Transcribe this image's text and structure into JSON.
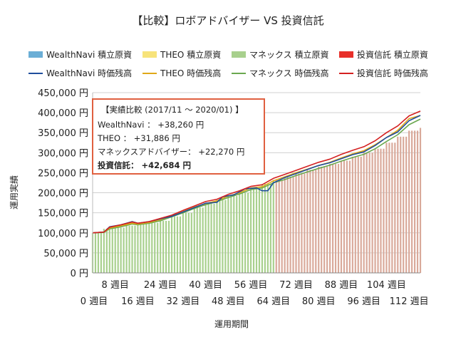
{
  "chart_data": {
    "type": "bar",
    "title": "【比較】ロボアドバイザー VS 投資信託",
    "xlabel": "運用期間",
    "ylabel": "運用実績",
    "ylim": [
      0,
      450000
    ],
    "yticks": [
      {
        "v": 0,
        "label": "0 円"
      },
      {
        "v": 50000,
        "label": "50,000 円"
      },
      {
        "v": 100000,
        "label": "100,000 円"
      },
      {
        "v": 150000,
        "label": "150,000 円"
      },
      {
        "v": 200000,
        "label": "200,000 円"
      },
      {
        "v": 250000,
        "label": "250,000 円"
      },
      {
        "v": 300000,
        "label": "300,000 円"
      },
      {
        "v": 350000,
        "label": "350,000 円"
      },
      {
        "v": 400000,
        "label": "400,000 円"
      },
      {
        "v": 450000,
        "label": "450,000 円"
      }
    ],
    "xlim": [
      0,
      116
    ],
    "xticks_top": [
      {
        "w": 8,
        "label": "8 週目"
      },
      {
        "w": 24,
        "label": "24 週目"
      },
      {
        "w": 40,
        "label": "40 週目"
      },
      {
        "w": 56,
        "label": "56 週目"
      },
      {
        "w": 72,
        "label": "72 週目"
      },
      {
        "w": 88,
        "label": "88 週目"
      },
      {
        "w": 104,
        "label": "104 週目"
      }
    ],
    "xticks_bottom": [
      {
        "w": 0,
        "label": "0 週目"
      },
      {
        "w": 16,
        "label": "16 週目"
      },
      {
        "w": 32,
        "label": "32 週目"
      },
      {
        "w": 48,
        "label": "48 週目"
      },
      {
        "w": 64,
        "label": "64 週目"
      },
      {
        "w": 80,
        "label": "80 週目"
      },
      {
        "w": 96,
        "label": "96 週目"
      },
      {
        "w": 112,
        "label": "112 週目"
      }
    ],
    "legend": {
      "position": "top",
      "row1": [
        {
          "name": "WealthNavi 積立原資",
          "color": "#6baed6",
          "kind": "box"
        },
        {
          "name": "THEO 積立原資",
          "color": "#f7e37a",
          "kind": "box"
        },
        {
          "name": "マネックス 積立原資",
          "color": "#a8d08d",
          "kind": "box"
        },
        {
          "name": "投資信託 積立原資",
          "color": "#e8302a",
          "kind": "box"
        }
      ],
      "row2": [
        {
          "name": "WealthNavi 時価残高",
          "color": "#1f4e9c",
          "kind": "line"
        },
        {
          "name": "THEO 時価残高",
          "color": "#e0a818",
          "kind": "line"
        },
        {
          "name": "マネックス 時価残高",
          "color": "#6aa84f",
          "kind": "line"
        },
        {
          "name": "投資信託 時価残高",
          "color": "#d42020",
          "kind": "line"
        }
      ]
    },
    "grid": true,
    "bar_segments": [
      {
        "from": 0,
        "to": 65,
        "color": "#a8d08d"
      },
      {
        "from": 65,
        "to": 116,
        "color": "#d9a99a"
      }
    ],
    "principal_steps": [
      [
        0,
        100000
      ],
      [
        2,
        101000
      ],
      [
        4,
        110000
      ],
      [
        8,
        113000
      ],
      [
        12,
        118000
      ],
      [
        16,
        122000
      ],
      [
        20,
        125000
      ],
      [
        24,
        130000
      ],
      [
        28,
        141000
      ],
      [
        32,
        150000
      ],
      [
        36,
        163000
      ],
      [
        40,
        173000
      ],
      [
        44,
        182000
      ],
      [
        48,
        192000
      ],
      [
        52,
        200000
      ],
      [
        56,
        212000
      ],
      [
        60,
        222000
      ],
      [
        64,
        232000
      ],
      [
        68,
        240000
      ],
      [
        72,
        248000
      ],
      [
        76,
        257000
      ],
      [
        80,
        265000
      ],
      [
        84,
        272000
      ],
      [
        88,
        280000
      ],
      [
        92,
        290000
      ],
      [
        96,
        300000
      ],
      [
        100,
        310000
      ],
      [
        104,
        325000
      ],
      [
        108,
        340000
      ],
      [
        112,
        355000
      ],
      [
        116,
        362000
      ]
    ],
    "series": [
      {
        "name": "WealthNavi 時価残高",
        "color": "#1f4e9c",
        "points": [
          [
            0,
            100000
          ],
          [
            4,
            102000
          ],
          [
            6,
            115000
          ],
          [
            10,
            120000
          ],
          [
            14,
            128000
          ],
          [
            16,
            124000
          ],
          [
            20,
            128000
          ],
          [
            24,
            135000
          ],
          [
            28,
            141000
          ],
          [
            32,
            152000
          ],
          [
            36,
            163000
          ],
          [
            40,
            174000
          ],
          [
            44,
            176000
          ],
          [
            46,
            190000
          ],
          [
            50,
            195000
          ],
          [
            54,
            210000
          ],
          [
            58,
            212000
          ],
          [
            60,
            205000
          ],
          [
            62,
            205000
          ],
          [
            64,
            225000
          ],
          [
            68,
            238000
          ],
          [
            72,
            248000
          ],
          [
            76,
            258000
          ],
          [
            80,
            268000
          ],
          [
            84,
            275000
          ],
          [
            88,
            285000
          ],
          [
            92,
            295000
          ],
          [
            96,
            302000
          ],
          [
            100,
            318000
          ],
          [
            104,
            338000
          ],
          [
            108,
            352000
          ],
          [
            112,
            380000
          ],
          [
            116,
            393000
          ]
        ]
      },
      {
        "name": "THEO 時価残高",
        "color": "#e0a818",
        "points": [
          [
            0,
            100000
          ],
          [
            4,
            102000
          ],
          [
            6,
            112000
          ],
          [
            10,
            118000
          ],
          [
            14,
            124000
          ],
          [
            16,
            122000
          ],
          [
            20,
            126000
          ],
          [
            24,
            133000
          ],
          [
            28,
            142000
          ],
          [
            32,
            153000
          ],
          [
            36,
            164000
          ],
          [
            40,
            173000
          ],
          [
            44,
            180000
          ],
          [
            48,
            192000
          ],
          [
            52,
            200000
          ],
          [
            56,
            212000
          ],
          [
            60,
            215000
          ],
          [
            64,
            230000
          ],
          [
            68,
            240000
          ],
          [
            72,
            250000
          ],
          [
            76,
            259000
          ],
          [
            80,
            268000
          ],
          [
            84,
            276000
          ],
          [
            88,
            287000
          ],
          [
            92,
            297000
          ],
          [
            96,
            305000
          ],
          [
            100,
            320000
          ],
          [
            104,
            338000
          ],
          [
            108,
            356000
          ],
          [
            112,
            385000
          ],
          [
            116,
            393000
          ]
        ]
      },
      {
        "name": "マネックス 時価残高",
        "color": "#6aa84f",
        "points": [
          [
            0,
            100000
          ],
          [
            4,
            101000
          ],
          [
            6,
            110000
          ],
          [
            10,
            115000
          ],
          [
            14,
            122000
          ],
          [
            16,
            120000
          ],
          [
            20,
            124000
          ],
          [
            24,
            130000
          ],
          [
            28,
            140000
          ],
          [
            32,
            150000
          ],
          [
            36,
            161000
          ],
          [
            40,
            170000
          ],
          [
            44,
            178000
          ],
          [
            48,
            188000
          ],
          [
            52,
            197000
          ],
          [
            56,
            208000
          ],
          [
            60,
            212000
          ],
          [
            64,
            225000
          ],
          [
            68,
            233000
          ],
          [
            72,
            243000
          ],
          [
            76,
            252000
          ],
          [
            80,
            261000
          ],
          [
            84,
            269000
          ],
          [
            88,
            279000
          ],
          [
            92,
            288000
          ],
          [
            96,
            296000
          ],
          [
            100,
            310000
          ],
          [
            104,
            328000
          ],
          [
            108,
            345000
          ],
          [
            112,
            370000
          ],
          [
            116,
            384000
          ]
        ]
      },
      {
        "name": "投資信託 時価残高",
        "color": "#d42020",
        "points": [
          [
            0,
            100000
          ],
          [
            4,
            102000
          ],
          [
            6,
            114000
          ],
          [
            10,
            120000
          ],
          [
            14,
            127000
          ],
          [
            16,
            124000
          ],
          [
            20,
            128000
          ],
          [
            24,
            136000
          ],
          [
            28,
            144000
          ],
          [
            32,
            156000
          ],
          [
            36,
            167000
          ],
          [
            40,
            178000
          ],
          [
            44,
            184000
          ],
          [
            48,
            196000
          ],
          [
            52,
            205000
          ],
          [
            56,
            216000
          ],
          [
            60,
            220000
          ],
          [
            64,
            236000
          ],
          [
            68,
            246000
          ],
          [
            72,
            256000
          ],
          [
            76,
            266000
          ],
          [
            80,
            276000
          ],
          [
            84,
            284000
          ],
          [
            88,
            296000
          ],
          [
            92,
            306000
          ],
          [
            96,
            315000
          ],
          [
            100,
            330000
          ],
          [
            104,
            350000
          ],
          [
            108,
            367000
          ],
          [
            112,
            392000
          ],
          [
            116,
            404000
          ]
        ]
      }
    ],
    "annotation": {
      "title": "【実績比較 (2017/11 ～ 2020/01) 】",
      "lines": [
        {
          "text": "WealthNavi ： +38,260 円",
          "bold": false
        },
        {
          "text": "THEO ： +31,886 円",
          "bold": false
        },
        {
          "text": "マネックスアドバイザー： +22,270 円",
          "bold": false
        },
        {
          "text": "投資信託： +42,684 円",
          "bold": true
        }
      ]
    }
  }
}
